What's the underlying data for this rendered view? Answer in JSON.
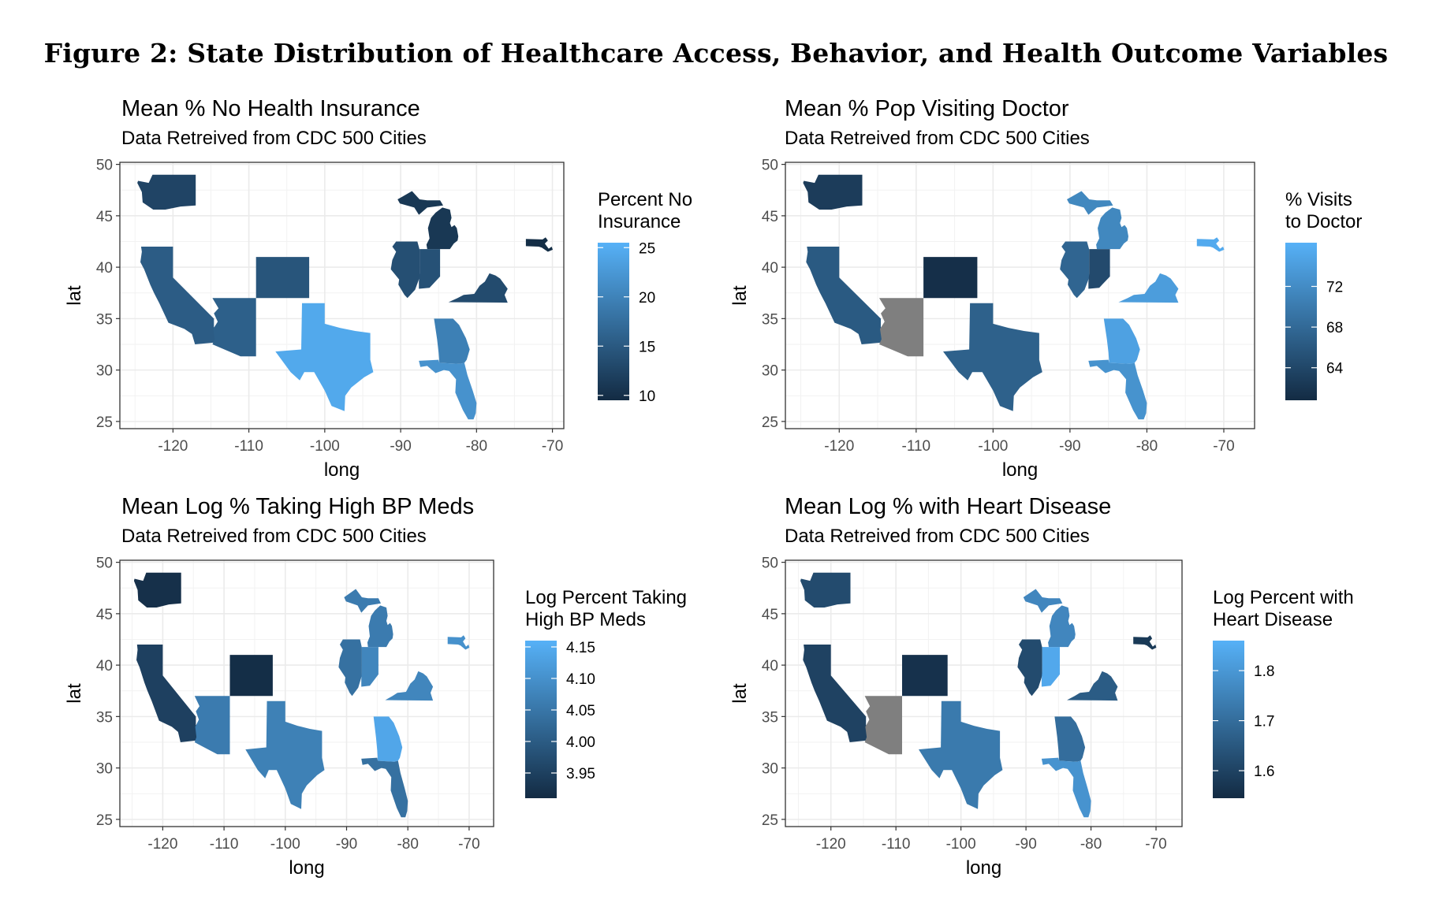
{
  "figure_title": "Figure 2: State Distribution of Healthcare Access, Behavior, and Health Outcome Variables",
  "chart_data": [
    {
      "type": "heatmap",
      "title": "Mean % No Health Insurance",
      "subtitle": "Data Retreived from CDC 500 Cities",
      "xlabel": "long",
      "ylabel": "lat",
      "xlim": [
        -127,
        -68.5
      ],
      "ylim": [
        24.3,
        50.2
      ],
      "xticks": [
        -120,
        -110,
        -100,
        -90,
        -80,
        -70
      ],
      "yticks": [
        25,
        30,
        35,
        40,
        45,
        50
      ],
      "legend_title": "Percent No\nInsurance",
      "legend_range": [
        9.5,
        25.5
      ],
      "legend_ticks": [
        10,
        15,
        20,
        25
      ],
      "color_low": "#132B43",
      "color_high": "#56B1F7",
      "na_color": "#7F7F7F",
      "grid": true,
      "states": [
        {
          "state": "Washington",
          "value": 12.5
        },
        {
          "state": "California",
          "value": 15.4
        },
        {
          "state": "Arizona",
          "value": 15.8
        },
        {
          "state": "Colorado",
          "value": 14.5
        },
        {
          "state": "Texas",
          "value": 24.5
        },
        {
          "state": "Illinois",
          "value": 13.8
        },
        {
          "state": "Indiana",
          "value": 14.0
        },
        {
          "state": "Michigan",
          "value": 11.0
        },
        {
          "state": "Virginia",
          "value": 13.3
        },
        {
          "state": "Georgia",
          "value": 19.6
        },
        {
          "state": "Florida",
          "value": 21.8
        },
        {
          "state": "Massachusetts",
          "value": 9.8
        }
      ]
    },
    {
      "type": "heatmap",
      "title": "Mean % Pop Visiting Doctor",
      "subtitle": "Data Retreived from CDC 500 Cities",
      "xlabel": "long",
      "ylabel": "lat",
      "xlim": [
        -127,
        -66
      ],
      "ylim": [
        24.3,
        50.2
      ],
      "xticks": [
        -120,
        -110,
        -100,
        -90,
        -80,
        -70
      ],
      "yticks": [
        25,
        30,
        35,
        40,
        45,
        50
      ],
      "legend_title": "% Visits\nto Doctor",
      "legend_range": [
        60.8,
        76.3
      ],
      "legend_ticks": [
        64,
        68,
        72
      ],
      "color_low": "#132B43",
      "color_high": "#56B1F7",
      "na_color": "#7F7F7F",
      "grid": true,
      "states": [
        {
          "state": "Washington",
          "value": 62.8
        },
        {
          "state": "California",
          "value": 66.2
        },
        {
          "state": "Arizona",
          "value": null
        },
        {
          "state": "Colorado",
          "value": 61.3
        },
        {
          "state": "Texas",
          "value": 67.0
        },
        {
          "state": "Illinois",
          "value": 67.5
        },
        {
          "state": "Indiana",
          "value": 64.4
        },
        {
          "state": "Michigan",
          "value": 71.5
        },
        {
          "state": "Virginia",
          "value": 74.0
        },
        {
          "state": "Georgia",
          "value": 74.5
        },
        {
          "state": "Florida",
          "value": 72.8
        },
        {
          "state": "Massachusetts",
          "value": 75.5
        }
      ]
    },
    {
      "type": "heatmap",
      "title": "Mean Log % Taking High BP Meds",
      "subtitle": "Data Retreived from CDC 500 Cities",
      "xlabel": "long",
      "ylabel": "lat",
      "xlim": [
        -127,
        -66
      ],
      "ylim": [
        24.3,
        50.2
      ],
      "xticks": [
        -120,
        -110,
        -100,
        -90,
        -80,
        -70
      ],
      "yticks": [
        25,
        30,
        35,
        40,
        45,
        50
      ],
      "legend_title": "Log Percent Taking\nHigh BP Meds",
      "legend_range": [
        3.91,
        4.16
      ],
      "legend_ticks": [
        3.95,
        4.0,
        4.05,
        4.1,
        4.15
      ],
      "legend_tick_labels": [
        "3.95",
        "4.00",
        "4.05",
        "4.10",
        "4.15"
      ],
      "color_low": "#132B43",
      "color_high": "#56B1F7",
      "na_color": "#7F7F7F",
      "grid": true,
      "states": [
        {
          "state": "Washington",
          "value": 3.92
        },
        {
          "state": "California",
          "value": 3.95
        },
        {
          "state": "Arizona",
          "value": 4.06
        },
        {
          "state": "Colorado",
          "value": 3.915
        },
        {
          "state": "Texas",
          "value": 4.07
        },
        {
          "state": "Illinois",
          "value": 4.04
        },
        {
          "state": "Indiana",
          "value": 4.08
        },
        {
          "state": "Michigan",
          "value": 4.06
        },
        {
          "state": "Virginia",
          "value": 4.08
        },
        {
          "state": "Georgia",
          "value": 4.14
        },
        {
          "state": "Florida",
          "value": 4.04
        },
        {
          "state": "Massachusetts",
          "value": 4.1
        }
      ]
    },
    {
      "type": "heatmap",
      "title": "Mean Log % with Heart Disease",
      "subtitle": "Data Retreived from CDC 500 Cities",
      "xlabel": "long",
      "ylabel": "lat",
      "xlim": [
        -127,
        -66
      ],
      "ylim": [
        24.3,
        50.2
      ],
      "xticks": [
        -120,
        -110,
        -100,
        -90,
        -80,
        -70
      ],
      "yticks": [
        25,
        30,
        35,
        40,
        45,
        50
      ],
      "legend_title": "Log Percent with\nHeart Disease",
      "legend_range": [
        1.545,
        1.86
      ],
      "legend_ticks": [
        1.6,
        1.7,
        1.8
      ],
      "legend_tick_labels": [
        "1.6",
        "1.7",
        "1.8"
      ],
      "color_low": "#132B43",
      "color_high": "#56B1F7",
      "na_color": "#7F7F7F",
      "grid": true,
      "states": [
        {
          "state": "Washington",
          "value": 1.62
        },
        {
          "state": "California",
          "value": 1.6
        },
        {
          "state": "Arizona",
          "value": null
        },
        {
          "state": "Colorado",
          "value": 1.56
        },
        {
          "state": "Texas",
          "value": 1.73
        },
        {
          "state": "Illinois",
          "value": 1.62
        },
        {
          "state": "Indiana",
          "value": 1.84
        },
        {
          "state": "Michigan",
          "value": 1.76
        },
        {
          "state": "Virginia",
          "value": 1.66
        },
        {
          "state": "Georgia",
          "value": 1.7
        },
        {
          "state": "Florida",
          "value": 1.79
        },
        {
          "state": "Massachusetts",
          "value": 1.58
        }
      ]
    }
  ]
}
